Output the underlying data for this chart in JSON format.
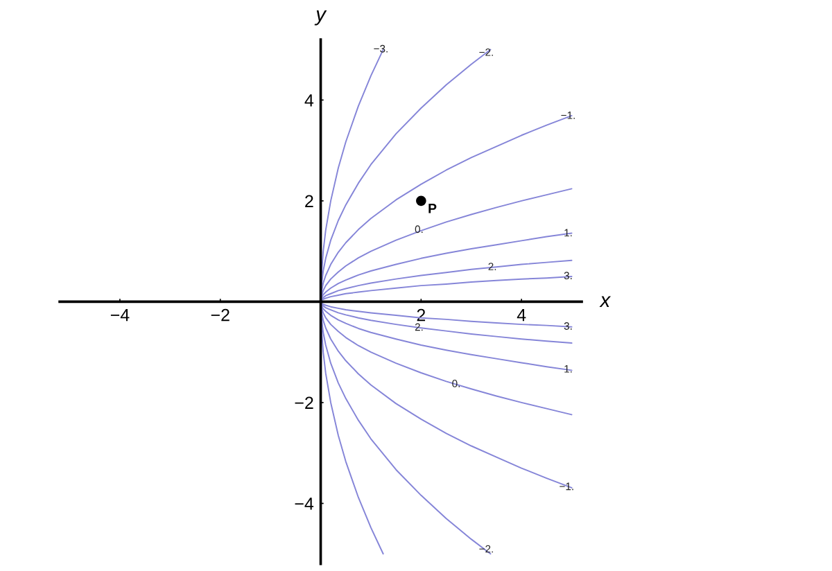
{
  "chart_data": {
    "type": "line",
    "xlabel": "x",
    "ylabel": "y",
    "xlim": [
      -5.2,
      5.2
    ],
    "ylim": [
      -5.2,
      5.2
    ],
    "xticks": [
      {
        "value": -4,
        "label": "−4"
      },
      {
        "value": -2,
        "label": "−2"
      },
      2,
      4
    ],
    "yticks": [
      {
        "value": -4,
        "label": "−4"
      },
      {
        "value": -2,
        "label": "−2"
      },
      2,
      4
    ],
    "x": [
      0.01,
      0.05,
      0.1,
      0.2,
      0.35,
      0.5,
      0.75,
      1,
      1.5,
      2,
      2.5,
      3,
      3.5,
      4,
      4.5,
      5
    ],
    "series": [
      {
        "color": "#8585d8",
        "x": [
          0.01,
          0.05,
          0.1,
          0.2,
          0.35,
          0.5,
          0.75,
          1,
          1.245
        ],
        "values": [
          0.45,
          1.0,
          1.42,
          2.0,
          2.65,
          3.17,
          3.88,
          4.48,
          5.0
        ]
      },
      {
        "color": "#8585d8",
        "x": [
          0.01,
          0.05,
          0.1,
          0.2,
          0.35,
          0.5,
          0.75,
          1,
          1.5,
          2,
          2.5,
          3,
          3.383
        ],
        "values": [
          0.27,
          0.61,
          0.86,
          1.22,
          1.61,
          1.92,
          2.35,
          2.72,
          3.33,
          3.84,
          4.3,
          4.71,
          5.0
        ]
      },
      {
        "color": "#8585d8",
        "values": [
          0.16,
          0.37,
          0.52,
          0.74,
          0.98,
          1.17,
          1.43,
          1.65,
          2.02,
          2.33,
          2.61,
          2.86,
          3.08,
          3.3,
          3.5,
          3.69
        ]
      },
      {
        "color": "#8585d8",
        "values": [
          0.1,
          0.22,
          0.32,
          0.45,
          0.59,
          0.71,
          0.87,
          1.0,
          1.22,
          1.41,
          1.58,
          1.73,
          1.87,
          2.0,
          2.12,
          2.24
        ]
      },
      {
        "color": "#8585d8",
        "values": [
          0.06,
          0.14,
          0.19,
          0.27,
          0.36,
          0.43,
          0.53,
          0.61,
          0.74,
          0.86,
          0.96,
          1.05,
          1.13,
          1.21,
          1.29,
          1.36
        ]
      },
      {
        "color": "#8585d8",
        "values": [
          0.04,
          0.08,
          0.12,
          0.16,
          0.22,
          0.26,
          0.32,
          0.37,
          0.45,
          0.52,
          0.58,
          0.64,
          0.69,
          0.74,
          0.78,
          0.82
        ]
      },
      {
        "color": "#8585d8",
        "values": [
          0.02,
          0.05,
          0.07,
          0.1,
          0.13,
          0.16,
          0.19,
          0.22,
          0.27,
          0.32,
          0.35,
          0.39,
          0.42,
          0.45,
          0.47,
          0.5
        ]
      },
      {
        "color": "#8585d8",
        "values": [
          -0.02,
          -0.05,
          -0.07,
          -0.1,
          -0.13,
          -0.16,
          -0.19,
          -0.22,
          -0.27,
          -0.32,
          -0.35,
          -0.39,
          -0.42,
          -0.45,
          -0.47,
          -0.5
        ]
      },
      {
        "color": "#8585d8",
        "values": [
          -0.04,
          -0.08,
          -0.12,
          -0.16,
          -0.22,
          -0.26,
          -0.32,
          -0.37,
          -0.45,
          -0.52,
          -0.58,
          -0.64,
          -0.69,
          -0.74,
          -0.78,
          -0.82
        ]
      },
      {
        "color": "#8585d8",
        "values": [
          -0.06,
          -0.14,
          -0.19,
          -0.27,
          -0.36,
          -0.43,
          -0.53,
          -0.61,
          -0.74,
          -0.86,
          -0.96,
          -1.05,
          -1.13,
          -1.21,
          -1.29,
          -1.36
        ]
      },
      {
        "color": "#8585d8",
        "values": [
          -0.1,
          -0.22,
          -0.32,
          -0.45,
          -0.59,
          -0.71,
          -0.87,
          -1.0,
          -1.22,
          -1.41,
          -1.58,
          -1.73,
          -1.87,
          -2.0,
          -2.12,
          -2.24
        ]
      },
      {
        "color": "#8585d8",
        "values": [
          -0.16,
          -0.37,
          -0.52,
          -0.74,
          -0.98,
          -1.17,
          -1.43,
          -1.65,
          -2.02,
          -2.33,
          -2.61,
          -2.86,
          -3.08,
          -3.3,
          -3.5,
          -3.69
        ]
      },
      {
        "color": "#8585d8",
        "x": [
          0.01,
          0.05,
          0.1,
          0.2,
          0.35,
          0.5,
          0.75,
          1,
          1.5,
          2,
          2.5,
          3,
          3.383
        ],
        "values": [
          -0.27,
          -0.61,
          -0.86,
          -1.22,
          -1.61,
          -1.92,
          -2.35,
          -2.72,
          -3.33,
          -3.84,
          -4.3,
          -4.71,
          -5.0
        ]
      },
      {
        "color": "#8585d8",
        "x": [
          0.01,
          0.05,
          0.1,
          0.2,
          0.35,
          0.5,
          0.75,
          1,
          1.245
        ],
        "values": [
          -0.45,
          -1.0,
          -1.42,
          -2.0,
          -2.65,
          -3.17,
          -3.88,
          -4.48,
          -5.0
        ]
      },
      {
        "type": "scatter",
        "name": "P",
        "color": "#000000",
        "marker": "circle",
        "x": [
          2
        ],
        "values": [
          2
        ]
      }
    ],
    "annotations": [
      {
        "text": "−3.",
        "x": 1.2,
        "y": 5.0
      },
      {
        "text": "−2.",
        "x": 3.3,
        "y": 4.93
      },
      {
        "text": "−1.",
        "x": 4.93,
        "y": 3.68
      },
      {
        "text": "0.",
        "x": 1.96,
        "y": 1.42
      },
      {
        "text": "1.",
        "x": 4.93,
        "y": 1.35
      },
      {
        "text": "2.",
        "x": 3.42,
        "y": 0.68
      },
      {
        "text": "3.",
        "x": 4.93,
        "y": 0.5
      },
      {
        "text": "3.",
        "x": 4.93,
        "y": -0.5
      },
      {
        "text": "2.",
        "x": 1.96,
        "y": -0.52
      },
      {
        "text": "1.",
        "x": 4.93,
        "y": -1.35
      },
      {
        "text": "0.",
        "x": 2.7,
        "y": -1.64
      },
      {
        "text": "−1.",
        "x": 4.9,
        "y": -3.68
      },
      {
        "text": "−2.",
        "x": 3.3,
        "y": -4.92
      }
    ]
  }
}
